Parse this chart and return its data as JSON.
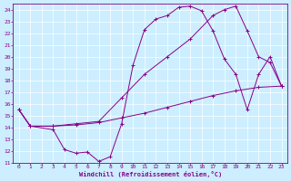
{
  "xlabel": "Windchill (Refroidissement éolien,°C)",
  "xlim": [
    -0.5,
    23.5
  ],
  "ylim": [
    11,
    24.5
  ],
  "xticks": [
    0,
    1,
    2,
    3,
    4,
    5,
    6,
    7,
    8,
    9,
    10,
    11,
    12,
    13,
    14,
    15,
    16,
    17,
    18,
    19,
    20,
    21,
    22,
    23
  ],
  "yticks": [
    11,
    12,
    13,
    14,
    15,
    16,
    17,
    18,
    19,
    20,
    21,
    22,
    23,
    24
  ],
  "bg_color": "#cceeff",
  "line_color": "#880088",
  "curve1_x": [
    0,
    1,
    3,
    4,
    5,
    6,
    7,
    8,
    9,
    10,
    11,
    12,
    13,
    14,
    15,
    16,
    17,
    18,
    19,
    20,
    21,
    22,
    23
  ],
  "curve1_y": [
    15.5,
    14.1,
    13.8,
    12.1,
    11.8,
    11.9,
    11.1,
    11.5,
    14.3,
    19.3,
    22.3,
    23.2,
    23.5,
    24.2,
    24.3,
    23.9,
    22.2,
    19.8,
    18.5,
    15.5,
    18.5,
    20.0,
    17.5
  ],
  "curve2_x": [
    0,
    1,
    3,
    5,
    7,
    9,
    11,
    13,
    15,
    17,
    18,
    19,
    20,
    21,
    22,
    23
  ],
  "curve2_y": [
    15.5,
    14.1,
    14.1,
    14.3,
    14.5,
    16.5,
    18.5,
    20.0,
    21.5,
    23.5,
    24.0,
    24.3,
    22.2,
    20.0,
    19.5,
    17.5
  ],
  "curve3_x": [
    0,
    1,
    3,
    5,
    7,
    9,
    11,
    13,
    15,
    17,
    19,
    21,
    23
  ],
  "curve3_y": [
    15.5,
    14.1,
    14.1,
    14.2,
    14.4,
    14.8,
    15.2,
    15.7,
    16.2,
    16.7,
    17.1,
    17.4,
    17.5
  ]
}
